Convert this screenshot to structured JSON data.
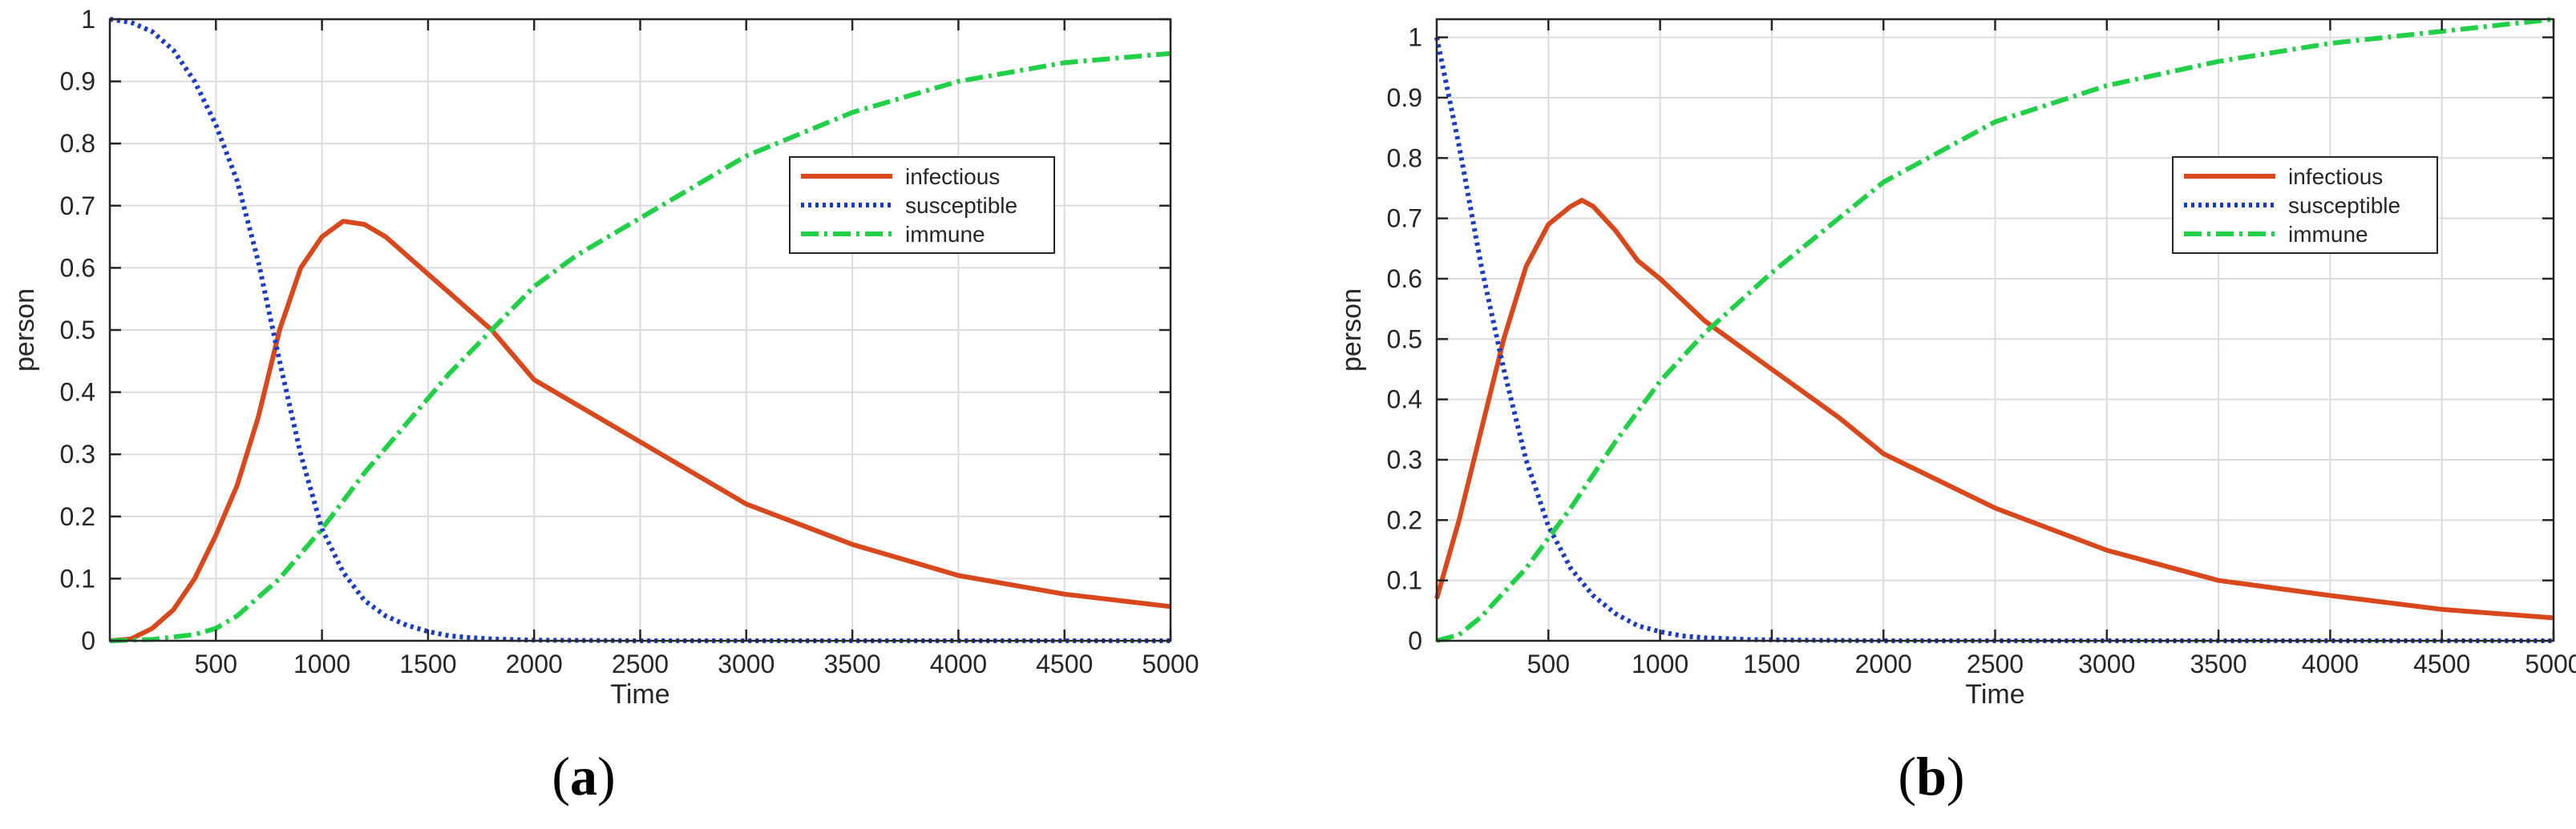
{
  "chart_data": [
    {
      "type": "line",
      "caption_letter": "a",
      "xlabel": "Time",
      "ylabel": "person",
      "xlim": [
        0,
        5000
      ],
      "ylim": [
        0,
        1
      ],
      "xticks": [
        500,
        1000,
        1500,
        2000,
        2500,
        3000,
        3500,
        4000,
        4500,
        5000
      ],
      "yticks": [
        0,
        0.1,
        0.2,
        0.3,
        0.4,
        0.5,
        0.6,
        0.7,
        0.8,
        0.9,
        1
      ],
      "ytick_labels": [
        "0",
        "0.1",
        "0.2",
        "0.3",
        "0.4",
        "0.5",
        "0.6",
        "0.7",
        "0.8",
        "0.9",
        "1"
      ],
      "grid": true,
      "legend_position": "top-right",
      "series": [
        {
          "name": "infectious",
          "color": "#d9481c",
          "style": "solid",
          "x": [
            0,
            100,
            200,
            300,
            400,
            500,
            600,
            700,
            800,
            900,
            1000,
            1100,
            1200,
            1300,
            1400,
            1500,
            1600,
            1700,
            1800,
            1900,
            2000,
            2200,
            2500,
            3000,
            3500,
            4000,
            4500,
            5000
          ],
          "y": [
            0,
            0.003,
            0.02,
            0.05,
            0.1,
            0.17,
            0.25,
            0.36,
            0.5,
            0.6,
            0.65,
            0.675,
            0.67,
            0.65,
            0.62,
            0.59,
            0.56,
            0.53,
            0.5,
            0.46,
            0.42,
            0.38,
            0.32,
            0.22,
            0.155,
            0.105,
            0.075,
            0.055
          ]
        },
        {
          "name": "susceptible",
          "color": "#1a3bc4",
          "style": "dotted",
          "x": [
            0,
            100,
            200,
            300,
            400,
            500,
            600,
            700,
            800,
            900,
            1000,
            1100,
            1200,
            1300,
            1400,
            1500,
            1600,
            1700,
            1800,
            2000,
            2500,
            3000,
            5000
          ],
          "y": [
            1,
            0.995,
            0.98,
            0.95,
            0.9,
            0.83,
            0.74,
            0.61,
            0.45,
            0.3,
            0.18,
            0.11,
            0.065,
            0.04,
            0.025,
            0.015,
            0.008,
            0.005,
            0.003,
            0.001,
            0,
            0,
            0
          ]
        },
        {
          "name": "immune",
          "color": "#22d048",
          "style": "dashdot",
          "x": [
            0,
            200,
            400,
            500,
            600,
            700,
            800,
            900,
            1000,
            1200,
            1400,
            1600,
            1800,
            2000,
            2200,
            2500,
            3000,
            3500,
            4000,
            4500,
            5000
          ],
          "y": [
            0,
            0.002,
            0.01,
            0.02,
            0.04,
            0.07,
            0.1,
            0.14,
            0.18,
            0.27,
            0.35,
            0.43,
            0.5,
            0.57,
            0.62,
            0.68,
            0.78,
            0.85,
            0.9,
            0.93,
            0.945
          ]
        }
      ]
    },
    {
      "type": "line",
      "caption_letter": "b",
      "xlabel": "Time",
      "ylabel": "person",
      "xlim": [
        0,
        5000
      ],
      "ylim": [
        0,
        1.03
      ],
      "xticks": [
        500,
        1000,
        1500,
        2000,
        2500,
        3000,
        3500,
        4000,
        4500,
        5000
      ],
      "yticks": [
        0,
        0.1,
        0.2,
        0.3,
        0.4,
        0.5,
        0.6,
        0.7,
        0.8,
        0.9,
        1
      ],
      "ytick_labels": [
        "0",
        "0.1",
        "0.2",
        "0.3",
        "0.4",
        "0.5",
        "0.6",
        "0.7",
        "0.8",
        "0.9",
        "1"
      ],
      "grid": true,
      "legend_position": "top-right",
      "series": [
        {
          "name": "infectious",
          "color": "#d9481c",
          "style": "solid",
          "x": [
            0,
            100,
            200,
            300,
            400,
            500,
            600,
            650,
            700,
            800,
            900,
            1000,
            1200,
            1500,
            1800,
            2000,
            2500,
            3000,
            3500,
            4000,
            4500,
            5000
          ],
          "y": [
            0.07,
            0.2,
            0.35,
            0.5,
            0.62,
            0.69,
            0.72,
            0.73,
            0.72,
            0.68,
            0.63,
            0.6,
            0.53,
            0.45,
            0.37,
            0.31,
            0.22,
            0.15,
            0.1,
            0.075,
            0.052,
            0.038
          ]
        },
        {
          "name": "susceptible",
          "color": "#1a3bc4",
          "style": "dotted",
          "x": [
            0,
            100,
            200,
            300,
            400,
            500,
            600,
            700,
            800,
            900,
            1000,
            1100,
            1200,
            1400,
            1600,
            2000,
            5000
          ],
          "y": [
            1,
            0.82,
            0.62,
            0.45,
            0.3,
            0.19,
            0.12,
            0.075,
            0.045,
            0.025,
            0.015,
            0.008,
            0.005,
            0.002,
            0.001,
            0,
            0
          ]
        },
        {
          "name": "immune",
          "color": "#22d048",
          "style": "dashdot",
          "x": [
            0,
            100,
            200,
            300,
            400,
            500,
            600,
            800,
            1000,
            1200,
            1500,
            1800,
            2000,
            2500,
            3000,
            3500,
            4000,
            4500,
            5000
          ],
          "y": [
            0,
            0.01,
            0.04,
            0.08,
            0.12,
            0.17,
            0.22,
            0.33,
            0.43,
            0.51,
            0.61,
            0.7,
            0.76,
            0.86,
            0.92,
            0.96,
            0.99,
            1.01,
            1.03
          ]
        }
      ]
    }
  ]
}
